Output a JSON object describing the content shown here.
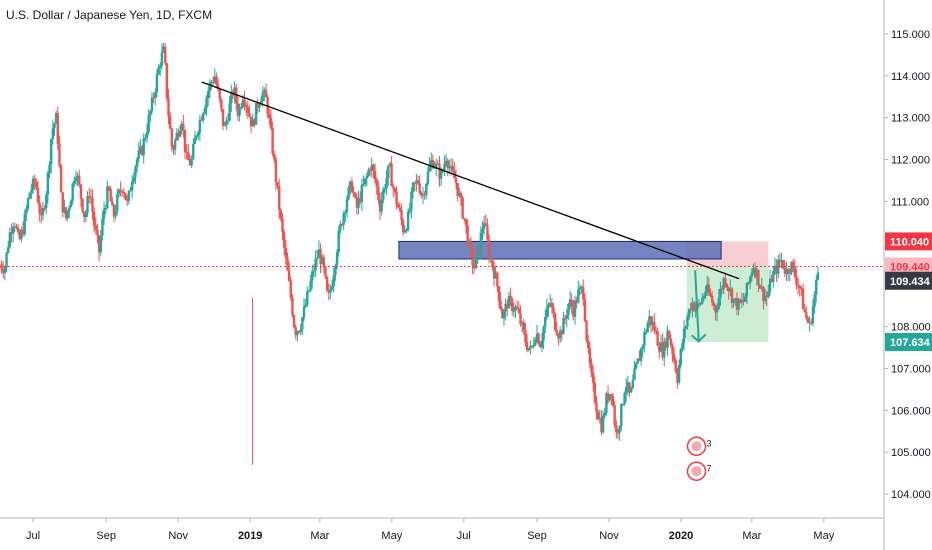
{
  "chart_data": {
    "type": "candlestick",
    "title": "U.S. Dollar / Japanese Yen, 1D, FXCM",
    "y_axis": {
      "position": "right",
      "ticks": [
        "115.000",
        "114.000",
        "113.000",
        "112.000",
        "111.000",
        "108.000",
        "107.000",
        "106.000",
        "105.000",
        "104.000"
      ],
      "range": [
        103.3,
        115.6
      ]
    },
    "x_axis": {
      "ticks": [
        {
          "label": "Jul",
          "bold": false
        },
        {
          "label": "Sep",
          "bold": false
        },
        {
          "label": "Nov",
          "bold": false
        },
        {
          "label": "2019",
          "bold": true
        },
        {
          "label": "Mar",
          "bold": false
        },
        {
          "label": "May",
          "bold": false
        },
        {
          "label": "Jul",
          "bold": false
        },
        {
          "label": "Sep",
          "bold": false
        },
        {
          "label": "Nov",
          "bold": false
        },
        {
          "label": "2020",
          "bold": true
        },
        {
          "label": "Mar",
          "bold": false
        },
        {
          "label": "May",
          "bold": false
        }
      ]
    },
    "price_path": [
      [
        0,
        109.5
      ],
      [
        4,
        109.4
      ],
      [
        8,
        110.2
      ],
      [
        12,
        110.6
      ],
      [
        16,
        110.0
      ],
      [
        20,
        110.4
      ],
      [
        25,
        111.2
      ],
      [
        30,
        111.5
      ],
      [
        35,
        110.5
      ],
      [
        40,
        111.4
      ],
      [
        44,
        112.7
      ],
      [
        48,
        113.0
      ],
      [
        52,
        111.0
      ],
      [
        56,
        110.6
      ],
      [
        60,
        111.1
      ],
      [
        64,
        111.8
      ],
      [
        68,
        111.2
      ],
      [
        72,
        110.6
      ],
      [
        76,
        111.3
      ],
      [
        80,
        110.4
      ],
      [
        84,
        109.8
      ],
      [
        88,
        110.8
      ],
      [
        92,
        111.3
      ],
      [
        96,
        110.6
      ],
      [
        100,
        111.1
      ],
      [
        104,
        111.4
      ],
      [
        108,
        110.9
      ],
      [
        112,
        111.6
      ],
      [
        116,
        112.0
      ],
      [
        120,
        112.2
      ],
      [
        124,
        112.7
      ],
      [
        128,
        113.2
      ],
      [
        132,
        113.8
      ],
      [
        136,
        114.4
      ],
      [
        139,
        114.6
      ],
      [
        142,
        113.3
      ],
      [
        146,
        112.2
      ],
      [
        150,
        112.6
      ],
      [
        154,
        113.0
      ],
      [
        158,
        112.0
      ],
      [
        162,
        111.9
      ],
      [
        166,
        112.6
      ],
      [
        170,
        113.0
      ],
      [
        174,
        113.4
      ],
      [
        178,
        113.8
      ],
      [
        182,
        114.0
      ],
      [
        186,
        113.4
      ],
      [
        190,
        112.7
      ],
      [
        194,
        113.2
      ],
      [
        198,
        113.7
      ],
      [
        202,
        113.1
      ],
      [
        206,
        113.6
      ],
      [
        210,
        113.2
      ],
      [
        214,
        112.8
      ],
      [
        218,
        113.3
      ],
      [
        222,
        113.6
      ],
      [
        226,
        113.4
      ],
      [
        230,
        112.5
      ],
      [
        234,
        111.5
      ],
      [
        238,
        110.5
      ],
      [
        242,
        109.6
      ],
      [
        246,
        108.8
      ],
      [
        250,
        107.9
      ],
      [
        254,
        108.0
      ],
      [
        258,
        108.4
      ],
      [
        262,
        108.9
      ],
      [
        266,
        109.4
      ],
      [
        270,
        109.8
      ],
      [
        274,
        109.4
      ],
      [
        278,
        108.6
      ],
      [
        282,
        109.2
      ],
      [
        286,
        110.0
      ],
      [
        290,
        110.6
      ],
      [
        294,
        111.1
      ],
      [
        298,
        111.4
      ],
      [
        302,
        110.8
      ],
      [
        306,
        111.2
      ],
      [
        310,
        111.5
      ],
      [
        314,
        111.9
      ],
      [
        318,
        111.5
      ],
      [
        322,
        110.9
      ],
      [
        326,
        111.4
      ],
      [
        330,
        111.8
      ],
      [
        334,
        111.2
      ],
      [
        338,
        110.8
      ],
      [
        342,
        110.3
      ],
      [
        346,
        110.6
      ],
      [
        350,
        111.3
      ],
      [
        354,
        111.5
      ],
      [
        358,
        111.1
      ],
      [
        362,
        111.6
      ],
      [
        366,
        112.0
      ],
      [
        370,
        111.8
      ],
      [
        374,
        111.6
      ],
      [
        378,
        112.1
      ],
      [
        382,
        111.7
      ],
      [
        386,
        111.5
      ],
      [
        390,
        111.0
      ],
      [
        394,
        110.5
      ],
      [
        398,
        109.8
      ],
      [
        402,
        109.4
      ],
      [
        406,
        109.9
      ],
      [
        410,
        110.6
      ],
      [
        414,
        109.8
      ],
      [
        418,
        109.4
      ],
      [
        422,
        108.9
      ],
      [
        426,
        108.2
      ],
      [
        430,
        108.6
      ],
      [
        434,
        108.5
      ],
      [
        438,
        108.4
      ],
      [
        442,
        108.0
      ],
      [
        446,
        107.6
      ],
      [
        450,
        107.4
      ],
      [
        454,
        107.9
      ],
      [
        458,
        107.6
      ],
      [
        462,
        108.2
      ],
      [
        466,
        108.6
      ],
      [
        470,
        108.1
      ],
      [
        474,
        107.8
      ],
      [
        478,
        108.1
      ],
      [
        482,
        108.6
      ],
      [
        486,
        108.4
      ],
      [
        490,
        108.8
      ],
      [
        494,
        108.9
      ],
      [
        498,
        107.4
      ],
      [
        502,
        106.6
      ],
      [
        506,
        106.0
      ],
      [
        510,
        105.6
      ],
      [
        514,
        106.3
      ],
      [
        518,
        106.5
      ],
      [
        522,
        105.4
      ],
      [
        526,
        105.9
      ],
      [
        530,
        106.7
      ],
      [
        534,
        106.3
      ],
      [
        538,
        106.9
      ],
      [
        542,
        107.3
      ],
      [
        546,
        107.8
      ],
      [
        550,
        108.2
      ],
      [
        554,
        108.0
      ],
      [
        558,
        107.6
      ],
      [
        562,
        107.4
      ],
      [
        566,
        107.9
      ],
      [
        570,
        107.4
      ],
      [
        574,
        106.8
      ],
      [
        578,
        107.6
      ],
      [
        582,
        108.2
      ],
      [
        586,
        108.6
      ],
      [
        590,
        108.4
      ],
      [
        594,
        108.6
      ],
      [
        598,
        108.9
      ],
      [
        602,
        108.7
      ],
      [
        606,
        108.4
      ],
      [
        610,
        108.8
      ],
      [
        614,
        109.2
      ],
      [
        618,
        108.9
      ],
      [
        622,
        108.6
      ],
      [
        626,
        108.5
      ],
      [
        630,
        108.6
      ],
      [
        634,
        109.0
      ],
      [
        638,
        109.5
      ],
      [
        642,
        109.2
      ],
      [
        646,
        108.8
      ],
      [
        650,
        108.7
      ],
      [
        654,
        109.2
      ],
      [
        658,
        109.4
      ],
      [
        662,
        109.6
      ],
      [
        666,
        109.3
      ],
      [
        670,
        109.5
      ],
      [
        674,
        109.2
      ],
      [
        678,
        108.9
      ],
      [
        682,
        108.3
      ],
      [
        686,
        108.0
      ],
      [
        690,
        108.7
      ],
      [
        694,
        109.5
      ]
    ],
    "trendline": {
      "from": [
        "2018-11-21",
        113.85
      ],
      "to": [
        "2020-02-19",
        109.15
      ]
    },
    "zone": {
      "from": "2019-05-07",
      "to": "2020-02-04",
      "high": 110.04,
      "low": 109.62
    },
    "position": {
      "entry": 109.44,
      "stop": 110.04,
      "target": 107.634,
      "from": "2020-01-06",
      "to": "2020-03-15"
    },
    "arrow": {
      "from": [
        "2020-01-13",
        109.35
      ],
      "to": [
        "2020-01-16",
        107.65
      ]
    },
    "hline": 109.44,
    "price_labels": [
      {
        "value": 110.04,
        "text": "110.040",
        "color": "#f23645"
      },
      {
        "value": 109.44,
        "text": "109.440",
        "color": "#fbb8bf",
        "text_color": "#f23645"
      },
      {
        "value": 109.434,
        "text": "109.434",
        "color": "#363a45"
      },
      {
        "value": 107.634,
        "text": "107.634",
        "color": "#26a69a"
      }
    ],
    "colors": {
      "up": "#26a69a",
      "down": "#ef5350",
      "trend": "#000000",
      "zone_fill": "#5b6fb5",
      "zone_stroke": "#1c2a8a",
      "stop_fill": "#f7c2c7",
      "target_fill": "#c8eccf",
      "hline": "#f23645",
      "arrow": "#26a69a"
    },
    "events": [
      "3",
      "7"
    ]
  }
}
